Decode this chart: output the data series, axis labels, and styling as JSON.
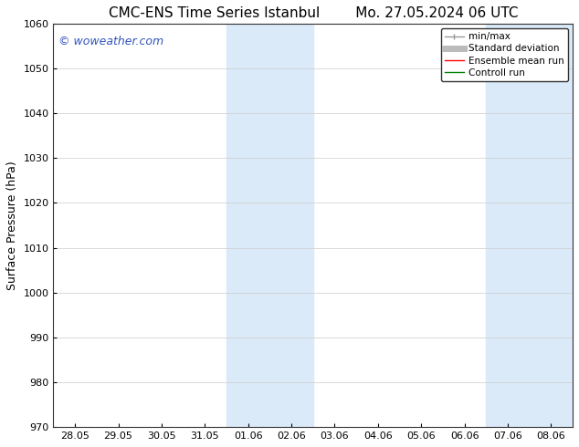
{
  "title_left": "CMC-ENS Time Series Istanbul",
  "title_right": "Mo. 27.05.2024 06 UTC",
  "ylabel": "Surface Pressure (hPa)",
  "ylim": [
    970,
    1060
  ],
  "yticks": [
    970,
    980,
    990,
    1000,
    1010,
    1020,
    1030,
    1040,
    1050,
    1060
  ],
  "xtick_labels": [
    "28.05",
    "29.05",
    "30.05",
    "31.05",
    "01.06",
    "02.06",
    "03.06",
    "04.06",
    "05.06",
    "06.06",
    "07.06",
    "08.06"
  ],
  "xtick_positions": [
    0,
    1,
    2,
    3,
    4,
    5,
    6,
    7,
    8,
    9,
    10,
    11
  ],
  "shaded_bands": [
    {
      "x_start": 4,
      "x_end": 5
    },
    {
      "x_start": 10,
      "x_end": 11
    }
  ],
  "shaded_color": "#daeaf8",
  "watermark_text": "© woweather.com",
  "watermark_color": "#3355bb",
  "legend_entries": [
    {
      "label": "min/max",
      "color": "#999999",
      "lw": 1.0
    },
    {
      "label": "Standard deviation",
      "color": "#bbbbbb",
      "lw": 5
    },
    {
      "label": "Ensemble mean run",
      "color": "red",
      "lw": 1.0
    },
    {
      "label": "Controll run",
      "color": "green",
      "lw": 1.0
    }
  ],
  "background_color": "#ffffff",
  "grid_color": "#cccccc",
  "title_fontsize": 11,
  "ylabel_fontsize": 9,
  "tick_fontsize": 8,
  "watermark_fontsize": 9,
  "legend_fontsize": 7.5
}
